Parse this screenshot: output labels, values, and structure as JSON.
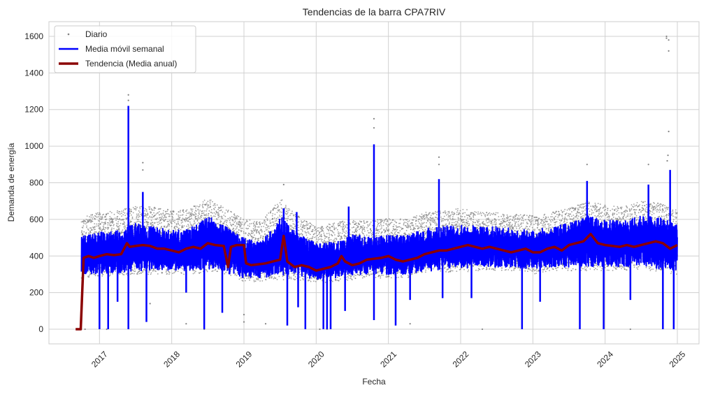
{
  "chart_data": {
    "type": "line",
    "title": "Tendencias de la barra CPA7RIV",
    "xlabel": "Fecha",
    "ylabel": "Demanda de energía",
    "x_range": [
      2016.3,
      2025.3
    ],
    "ylim": [
      -80,
      1680
    ],
    "x_ticks": [
      2017,
      2018,
      2019,
      2020,
      2021,
      2022,
      2023,
      2024,
      2025
    ],
    "x_tick_labels": [
      "2017",
      "2018",
      "2019",
      "2020",
      "2021",
      "2022",
      "2023",
      "2024",
      "2025"
    ],
    "y_ticks": [
      0,
      200,
      400,
      600,
      800,
      1000,
      1200,
      1400,
      1600
    ],
    "y_tick_labels": [
      "0",
      "200",
      "400",
      "600",
      "800",
      "1000",
      "1200",
      "1400",
      "1600"
    ],
    "grid": true,
    "legend_position": "top-left",
    "series": [
      {
        "name": "Diario",
        "style": "points",
        "color": "#808080",
        "band": {
          "x": [
            2016.75,
            2017.0,
            2017.3,
            2017.5,
            2017.75,
            2018.0,
            2018.25,
            2018.5,
            2018.75,
            2019.0,
            2019.25,
            2019.5,
            2019.75,
            2020.0,
            2020.25,
            2020.5,
            2020.75,
            2021.0,
            2021.25,
            2021.5,
            2021.75,
            2022.0,
            2022.25,
            2022.5,
            2022.75,
            2023.0,
            2023.25,
            2023.5,
            2023.75,
            2024.0,
            2024.25,
            2024.5,
            2024.75,
            2025.0
          ],
          "low": [
            280,
            290,
            290,
            300,
            300,
            300,
            300,
            310,
            300,
            260,
            260,
            270,
            270,
            250,
            260,
            270,
            280,
            280,
            280,
            300,
            310,
            310,
            320,
            320,
            320,
            300,
            320,
            320,
            320,
            320,
            320,
            330,
            310,
            300
          ],
          "high": [
            610,
            640,
            650,
            680,
            670,
            650,
            660,
            720,
            660,
            600,
            590,
            720,
            620,
            560,
            580,
            600,
            590,
            610,
            600,
            640,
            650,
            660,
            640,
            640,
            630,
            620,
            640,
            660,
            700,
            680,
            670,
            700,
            690,
            650
          ]
        },
        "outliers": [
          {
            "x": 2017.4,
            "y": 1280
          },
          {
            "x": 2017.4,
            "y": 1250
          },
          {
            "x": 2017.6,
            "y": 910
          },
          {
            "x": 2017.6,
            "y": 870
          },
          {
            "x": 2020.8,
            "y": 1150
          },
          {
            "x": 2020.8,
            "y": 1100
          },
          {
            "x": 2019.55,
            "y": 790
          },
          {
            "x": 2021.7,
            "y": 940
          },
          {
            "x": 2021.7,
            "y": 900
          },
          {
            "x": 2023.75,
            "y": 900
          },
          {
            "x": 2024.6,
            "y": 900
          },
          {
            "x": 2024.85,
            "y": 1600
          },
          {
            "x": 2024.85,
            "y": 1590
          },
          {
            "x": 2024.88,
            "y": 1580
          },
          {
            "x": 2024.88,
            "y": 1520
          },
          {
            "x": 2024.88,
            "y": 1080
          },
          {
            "x": 2024.87,
            "y": 950
          },
          {
            "x": 2024.86,
            "y": 920
          },
          {
            "x": 2019.3,
            "y": 30
          },
          {
            "x": 2018.2,
            "y": 30
          },
          {
            "x": 2018.45,
            "y": 0
          },
          {
            "x": 2019.0,
            "y": 40
          },
          {
            "x": 2019.0,
            "y": 80
          },
          {
            "x": 2021.3,
            "y": 30
          },
          {
            "x": 2022.3,
            "y": 0
          },
          {
            "x": 2024.35,
            "y": 0
          },
          {
            "x": 2017.7,
            "y": 140
          },
          {
            "x": 2017.1,
            "y": 0
          },
          {
            "x": 2016.8,
            "y": 0
          },
          {
            "x": 2019.68,
            "y": 400
          },
          {
            "x": 2020.05,
            "y": 0
          },
          {
            "x": 2020.15,
            "y": 0
          }
        ]
      },
      {
        "name": "Media móvil semanal",
        "style": "line",
        "color": "#0000ff",
        "band": {
          "x": [
            2016.75,
            2017.0,
            2017.3,
            2017.5,
            2017.75,
            2018.0,
            2018.25,
            2018.5,
            2018.75,
            2019.0,
            2019.25,
            2019.5,
            2019.75,
            2020.0,
            2020.25,
            2020.5,
            2020.75,
            2021.0,
            2021.25,
            2021.5,
            2021.75,
            2022.0,
            2022.25,
            2022.5,
            2022.75,
            2023.0,
            2023.25,
            2023.5,
            2023.75,
            2024.0,
            2024.25,
            2024.5,
            2024.75,
            2025.0
          ],
          "low": [
            300,
            300,
            310,
            320,
            320,
            320,
            320,
            330,
            320,
            280,
            280,
            290,
            290,
            270,
            280,
            290,
            300,
            300,
            300,
            310,
            330,
            330,
            340,
            340,
            340,
            320,
            340,
            340,
            340,
            340,
            340,
            350,
            330,
            320
          ],
          "high": [
            510,
            530,
            540,
            580,
            560,
            540,
            550,
            620,
            560,
            500,
            480,
            620,
            520,
            470,
            480,
            520,
            500,
            520,
            510,
            550,
            560,
            580,
            560,
            560,
            550,
            540,
            560,
            580,
            620,
            600,
            590,
            620,
            610,
            580
          ]
        },
        "spikes": [
          {
            "x": 2017.0,
            "y": 0
          },
          {
            "x": 2017.12,
            "y": 0
          },
          {
            "x": 2017.25,
            "y": 150
          },
          {
            "x": 2017.4,
            "y": 1220
          },
          {
            "x": 2017.4,
            "y": 0
          },
          {
            "x": 2017.6,
            "y": 750
          },
          {
            "x": 2017.65,
            "y": 40
          },
          {
            "x": 2018.2,
            "y": 200
          },
          {
            "x": 2018.45,
            "y": 0
          },
          {
            "x": 2018.7,
            "y": 90
          },
          {
            "x": 2018.8,
            "y": 300
          },
          {
            "x": 2019.55,
            "y": 660
          },
          {
            "x": 2019.6,
            "y": 20
          },
          {
            "x": 2019.73,
            "y": 640
          },
          {
            "x": 2019.75,
            "y": 120
          },
          {
            "x": 2019.85,
            "y": 0
          },
          {
            "x": 2020.1,
            "y": 0
          },
          {
            "x": 2020.15,
            "y": 0
          },
          {
            "x": 2020.2,
            "y": 0
          },
          {
            "x": 2020.4,
            "y": 100
          },
          {
            "x": 2020.45,
            "y": 670
          },
          {
            "x": 2020.8,
            "y": 1010
          },
          {
            "x": 2020.8,
            "y": 50
          },
          {
            "x": 2021.1,
            "y": 20
          },
          {
            "x": 2021.3,
            "y": 160
          },
          {
            "x": 2021.7,
            "y": 820
          },
          {
            "x": 2021.75,
            "y": 170
          },
          {
            "x": 2022.15,
            "y": 170
          },
          {
            "x": 2022.85,
            "y": 0
          },
          {
            "x": 2023.1,
            "y": 150
          },
          {
            "x": 2023.65,
            "y": 0
          },
          {
            "x": 2023.75,
            "y": 810
          },
          {
            "x": 2023.98,
            "y": 0
          },
          {
            "x": 2024.35,
            "y": 160
          },
          {
            "x": 2024.6,
            "y": 790
          },
          {
            "x": 2024.8,
            "y": 0
          },
          {
            "x": 2024.9,
            "y": 870
          },
          {
            "x": 2024.95,
            "y": 0
          }
        ]
      },
      {
        "name": "Tendencia (Media anual)",
        "style": "line",
        "color": "#8b0000",
        "x": [
          2016.67,
          2016.72,
          2016.74,
          2016.78,
          2016.85,
          2016.92,
          2017.0,
          2017.1,
          2017.2,
          2017.3,
          2017.38,
          2017.42,
          2017.5,
          2017.6,
          2017.7,
          2017.8,
          2017.9,
          2018.0,
          2018.1,
          2018.2,
          2018.3,
          2018.4,
          2018.5,
          2018.6,
          2018.72,
          2018.78,
          2018.82,
          2018.9,
          2019.0,
          2019.03,
          2019.1,
          2019.2,
          2019.3,
          2019.4,
          2019.5,
          2019.55,
          2019.6,
          2019.7,
          2019.8,
          2019.9,
          2020.0,
          2020.1,
          2020.2,
          2020.3,
          2020.35,
          2020.4,
          2020.5,
          2020.6,
          2020.7,
          2020.8,
          2020.9,
          2021.0,
          2021.1,
          2021.2,
          2021.3,
          2021.4,
          2021.5,
          2021.6,
          2021.7,
          2021.8,
          2021.9,
          2022.0,
          2022.1,
          2022.2,
          2022.3,
          2022.4,
          2022.5,
          2022.6,
          2022.7,
          2022.8,
          2022.9,
          2023.0,
          2023.1,
          2023.2,
          2023.3,
          2023.4,
          2023.5,
          2023.6,
          2023.7,
          2023.8,
          2023.9,
          2024.0,
          2024.1,
          2024.2,
          2024.3,
          2024.4,
          2024.5,
          2024.6,
          2024.7,
          2024.8,
          2024.9,
          2025.0
        ],
        "values": [
          0,
          0,
          0,
          390,
          400,
          390,
          400,
          410,
          405,
          410,
          470,
          450,
          455,
          460,
          455,
          440,
          440,
          430,
          420,
          440,
          450,
          440,
          470,
          460,
          455,
          340,
          450,
          460,
          460,
          360,
          350,
          355,
          360,
          370,
          380,
          510,
          370,
          340,
          350,
          340,
          320,
          330,
          340,
          360,
          400,
          370,
          350,
          360,
          380,
          385,
          390,
          400,
          380,
          370,
          380,
          390,
          410,
          420,
          430,
          430,
          440,
          450,
          460,
          450,
          440,
          450,
          440,
          430,
          420,
          430,
          440,
          420,
          420,
          440,
          450,
          430,
          460,
          470,
          480,
          520,
          470,
          460,
          455,
          450,
          460,
          450,
          460,
          470,
          480,
          470,
          440,
          460
        ]
      }
    ]
  }
}
